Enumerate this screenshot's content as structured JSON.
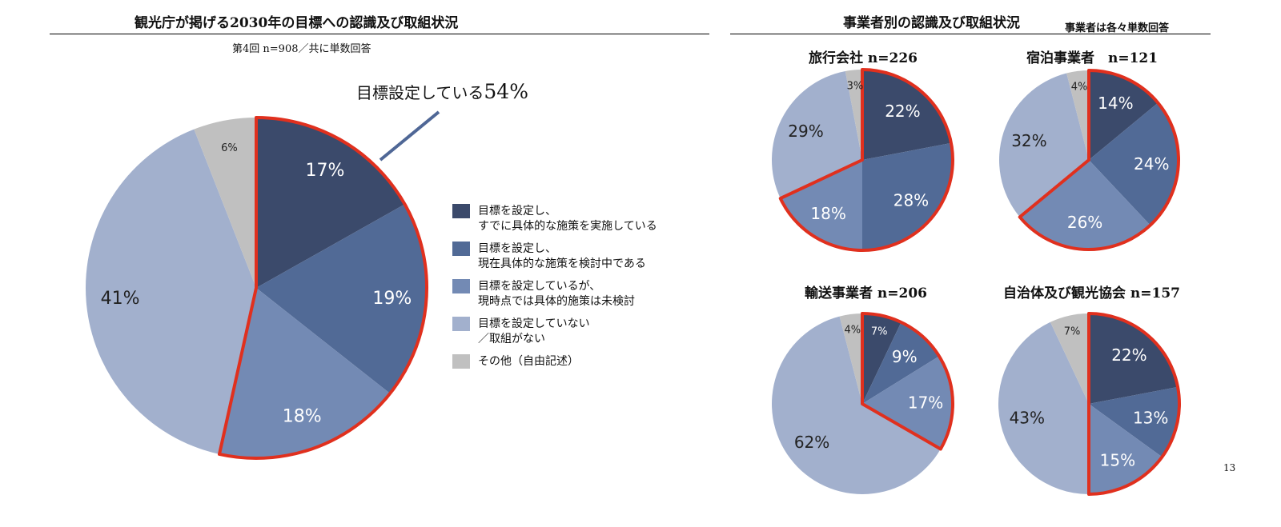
{
  "left": {
    "title": "観光庁が掲げる2030年の目標への認識及び取組状況",
    "subtitle": "第4回 n=908／共に単数回答",
    "callout_text": "目標設定している",
    "callout_value": "54%"
  },
  "right": {
    "title": "事業者別の認識及び取組状況",
    "note": "事業者は各々単数回答"
  },
  "legend": [
    {
      "line1": "目標を設定し、",
      "line2": "すでに具体的な施策を実施している"
    },
    {
      "line1": "目標を設定し、",
      "line2": "現在具体的な施策を検討中である"
    },
    {
      "line1": "目標を設定しているが、",
      "line2": "現時点では具体的施策は未検討"
    },
    {
      "line1": "目標を設定していない",
      "line2": "／取組がない"
    },
    {
      "line1": "その他（自由記述）",
      "line2": ""
    }
  ],
  "colors": [
    "#3b4a6b",
    "#516a96",
    "#738ab4",
    "#a2b0cd",
    "#c0c0c0"
  ],
  "highlight_color": "#e0301e",
  "page_number": "13",
  "chart_data": [
    {
      "type": "pie",
      "title": "第4回 n=908",
      "values": [
        17,
        19,
        18,
        41,
        6
      ],
      "labels": [
        "17%",
        "19%",
        "18%",
        "41%",
        "6%"
      ],
      "highlighted_slices": [
        0,
        1,
        2
      ]
    },
    {
      "type": "pie",
      "title": "旅行会社 n=226",
      "values": [
        22,
        28,
        18,
        29,
        3
      ],
      "labels": [
        "22%",
        "28%",
        "18%",
        "29%",
        "3%"
      ],
      "highlighted_slices": [
        0,
        1,
        2
      ]
    },
    {
      "type": "pie",
      "title": "宿泊事業者　n=121",
      "values": [
        14,
        24,
        26,
        32,
        4
      ],
      "labels": [
        "14%",
        "24%",
        "26%",
        "32%",
        "4%"
      ],
      "highlighted_slices": [
        0,
        1,
        2
      ]
    },
    {
      "type": "pie",
      "title": "輸送事業者 n=206",
      "values": [
        7,
        9,
        17,
        62,
        4
      ],
      "labels": [
        "7%",
        "9%",
        "17%",
        "62%",
        "4%"
      ],
      "highlighted_slices": [
        0,
        1,
        2
      ]
    },
    {
      "type": "pie",
      "title": "自治体及び観光協会 n=157",
      "values": [
        22,
        13,
        15,
        43,
        7
      ],
      "labels": [
        "22%",
        "13%",
        "15%",
        "43%",
        "7%"
      ],
      "highlighted_slices": [
        0,
        1,
        2
      ]
    }
  ]
}
